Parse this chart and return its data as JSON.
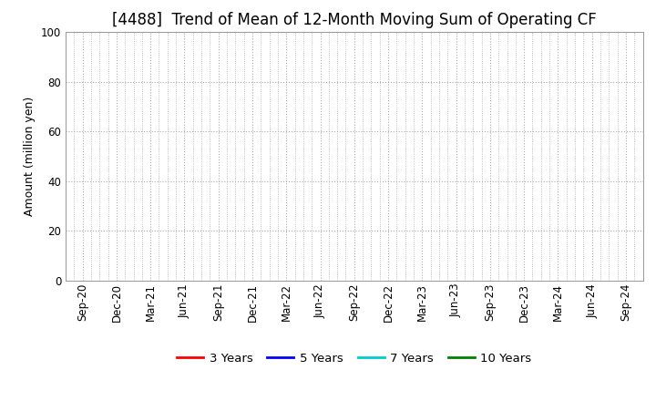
{
  "title": "[4488]  Trend of Mean of 12-Month Moving Sum of Operating CF",
  "ylabel": "Amount (million yen)",
  "ylim": [
    0,
    100
  ],
  "yticks": [
    0,
    20,
    40,
    60,
    80,
    100
  ],
  "x_labels": [
    "Sep-20",
    "Dec-20",
    "Mar-21",
    "Jun-21",
    "Sep-21",
    "Dec-21",
    "Mar-22",
    "Jun-22",
    "Sep-22",
    "Dec-22",
    "Mar-23",
    "Jun-23",
    "Sep-23",
    "Dec-23",
    "Mar-24",
    "Jun-24",
    "Sep-24"
  ],
  "legend_entries": [
    {
      "label": "3 Years",
      "color": "#ff0000"
    },
    {
      "label": "5 Years",
      "color": "#0000ff"
    },
    {
      "label": "7 Years",
      "color": "#00cccc"
    },
    {
      "label": "10 Years",
      "color": "#008000"
    }
  ],
  "background_color": "#ffffff",
  "grid_color": "#aaaaaa",
  "title_fontsize": 12,
  "axis_label_fontsize": 9,
  "tick_fontsize": 8.5,
  "legend_fontsize": 9.5
}
